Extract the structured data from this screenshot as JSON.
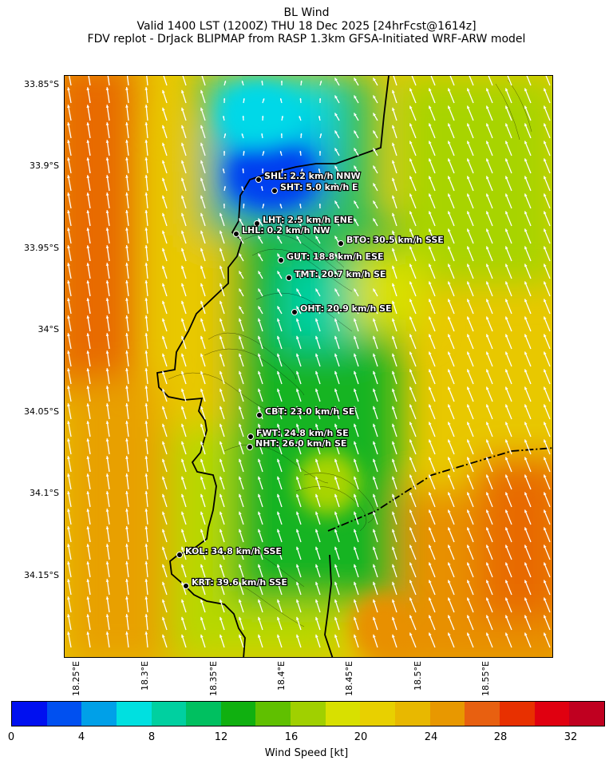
{
  "header": {
    "line1": "BL Wind",
    "line2": "Valid 1400 LST (1200Z) THU 18 Dec 2025 [24hrFcst@1614z]",
    "line3": "FDV replot - DrJack BLIPMAP from RASP 1.3km GFSA-Initiated WRF-ARW model"
  },
  "axes": {
    "lat_labels": [
      "33.85°S",
      "33.9°S",
      "33.95°S",
      "34°S",
      "34.05°S",
      "34.1°S",
      "34.15°S"
    ],
    "lon_labels": [
      "18.25°E",
      "18.3°E",
      "18.35°E",
      "18.4°E",
      "18.45°E",
      "18.5°E",
      "18.55°E"
    ]
  },
  "stations": [
    {
      "code": "SHL",
      "label": "SHL: 2.2 km/h NNW",
      "speed_kmh": 2.2,
      "dir": "NNW"
    },
    {
      "code": "SHT",
      "label": "SHT: 5.0 km/h E",
      "speed_kmh": 5.0,
      "dir": "E"
    },
    {
      "code": "LHT",
      "label": "LHT: 2.5 km/h ENE",
      "speed_kmh": 2.5,
      "dir": "ENE"
    },
    {
      "code": "LHL",
      "label": "LHL: 0.2 km/h NW",
      "speed_kmh": 0.2,
      "dir": "NW"
    },
    {
      "code": "BTO",
      "label": "BTO: 30.5 km/h SSE",
      "speed_kmh": 30.5,
      "dir": "SSE"
    },
    {
      "code": "GUT",
      "label": "GUT: 18.8 km/h ESE",
      "speed_kmh": 18.8,
      "dir": "ESE"
    },
    {
      "code": "TMT",
      "label": "TMT: 20.7 km/h SE",
      "speed_kmh": 20.7,
      "dir": "SE"
    },
    {
      "code": "OHT",
      "label": "OHT: 20.9 km/h SE",
      "speed_kmh": 20.9,
      "dir": "SE"
    },
    {
      "code": "CBT",
      "label": "CBT: 23.0 km/h SE",
      "speed_kmh": 23.0,
      "dir": "SE"
    },
    {
      "code": "FWT",
      "label": "FWT: 24.8 km/h SE",
      "speed_kmh": 24.8,
      "dir": "SE"
    },
    {
      "code": "NHT",
      "label": "NHT: 26.0 km/h SE",
      "speed_kmh": 26.0,
      "dir": "SE"
    },
    {
      "code": "KOL",
      "label": "KOL: 34.8 km/h SSE",
      "speed_kmh": 34.8,
      "dir": "SSE"
    },
    {
      "code": "KRT",
      "label": "KRT: 39.6 km/h SSE",
      "speed_kmh": 39.6,
      "dir": "SSE"
    }
  ],
  "colorbar": {
    "label": "Wind Speed [kt]",
    "ticks": [
      "0",
      "4",
      "8",
      "12",
      "16",
      "20",
      "24",
      "28",
      "32"
    ],
    "colors": [
      "#0010f0",
      "#0050f0",
      "#00a0e8",
      "#00e0e0",
      "#00d0a0",
      "#00c060",
      "#10b010",
      "#60c000",
      "#a0d000",
      "#d8e000",
      "#e8d000",
      "#e8b800",
      "#e89800",
      "#e86010",
      "#e83000",
      "#e00010",
      "#c00020"
    ]
  }
}
